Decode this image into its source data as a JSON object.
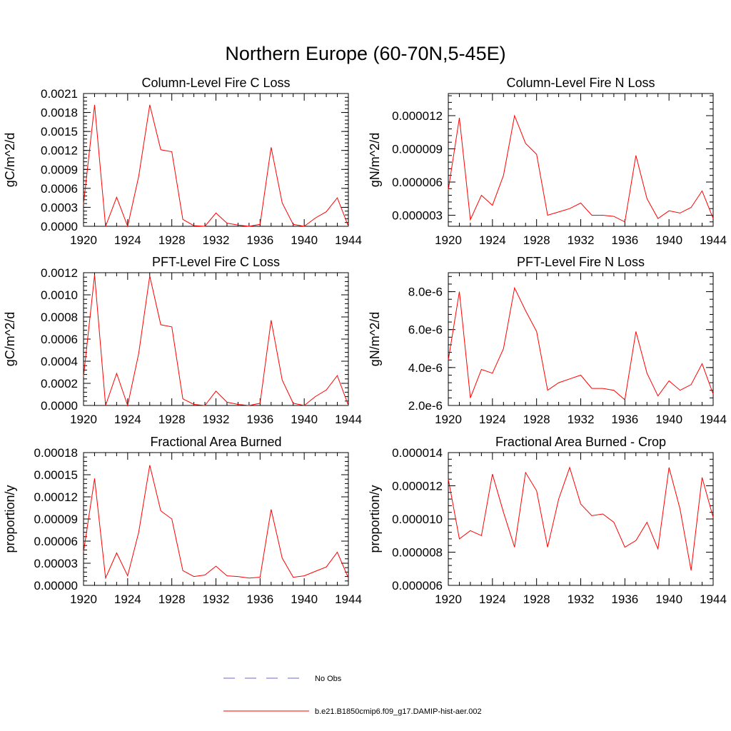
{
  "title": "Northern Europe (60-70N,5-45E)",
  "colors": {
    "model_line": "#ff0000",
    "obs_line": "#6a6ad0",
    "axis": "#000000"
  },
  "legend": {
    "placement": "bottom-center",
    "entries": [
      {
        "label": "No Obs",
        "style": "dashed",
        "color": "#6a6ad0"
      },
      {
        "label": "b.e21.B1850cmip6.f09_g17.DAMIP-hist-aer.002",
        "style": "solid",
        "color": "#ff0000"
      }
    ]
  },
  "chart_data": [
    {
      "type": "line",
      "title": "Column-Level Fire C Loss",
      "ylabel": "gC/m^2/d",
      "xlim": [
        1920,
        1944
      ],
      "xticks": [
        "1920",
        "1924",
        "1928",
        "1932",
        "1936",
        "1940",
        "1944"
      ],
      "ylim": [
        0,
        0.0021
      ],
      "yticks": [
        "0.0000",
        "0.0003",
        "0.0006",
        "0.0009",
        "0.0012",
        "0.0015",
        "0.0018",
        "0.0021"
      ],
      "series": [
        {
          "x": [
            1920,
            1921,
            1922,
            1923,
            1924,
            1925,
            1926,
            1927,
            1928,
            1929,
            1930,
            1931,
            1932,
            1933,
            1934,
            1935,
            1936,
            1937,
            1938,
            1939,
            1940,
            1941,
            1942,
            1943,
            1944
          ],
          "values": [
            0.00035,
            0.00192,
            0.0,
            0.00046,
            0.0,
            0.00079,
            0.00192,
            0.00121,
            0.00118,
            0.00011,
            1e-05,
            0.0,
            0.00021,
            5e-05,
            2e-05,
            0.0,
            3e-05,
            0.00125,
            0.00037,
            3e-05,
            0.0,
            0.00013,
            0.00023,
            0.00045,
            0.0
          ]
        }
      ]
    },
    {
      "type": "line",
      "title": "Column-Level Fire N Loss",
      "ylabel": "gN/m^2/d",
      "xlim": [
        1920,
        1944
      ],
      "xticks": [
        "1920",
        "1924",
        "1928",
        "1932",
        "1936",
        "1940",
        "1944"
      ],
      "ylim": [
        2e-06,
        1.4e-05
      ],
      "yticks": [
        "0.000003",
        "0.000006",
        "0.000009",
        "0.000012"
      ],
      "series": [
        {
          "x": [
            1920,
            1921,
            1922,
            1923,
            1924,
            1925,
            1926,
            1927,
            1928,
            1929,
            1930,
            1931,
            1932,
            1933,
            1934,
            1935,
            1936,
            1937,
            1938,
            1939,
            1940,
            1941,
            1942,
            1943,
            1944
          ],
          "values": [
            5.3e-06,
            1.18e-05,
            2.6e-06,
            4.8e-06,
            3.9e-06,
            6.6e-06,
            1.2e-05,
            9.5e-06,
            8.5e-06,
            3e-06,
            3.3e-06,
            3.6e-06,
            4.1e-06,
            3e-06,
            3e-06,
            2.9e-06,
            2.4e-06,
            8.4e-06,
            4.5e-06,
            2.7e-06,
            3.4e-06,
            3.2e-06,
            3.7e-06,
            5.2e-06,
            2.7e-06
          ]
        }
      ]
    },
    {
      "type": "line",
      "title": "PFT-Level Fire C Loss",
      "ylabel": "gC/m^2/d",
      "xlim": [
        1920,
        1944
      ],
      "xticks": [
        "1920",
        "1924",
        "1928",
        "1932",
        "1936",
        "1940",
        "1944"
      ],
      "ylim": [
        0,
        0.0012
      ],
      "yticks": [
        "0.0000",
        "0.0002",
        "0.0004",
        "0.0006",
        "0.0008",
        "0.0010",
        "0.0012"
      ],
      "series": [
        {
          "x": [
            1920,
            1921,
            1922,
            1923,
            1924,
            1925,
            1926,
            1927,
            1928,
            1929,
            1930,
            1931,
            1932,
            1933,
            1934,
            1935,
            1936,
            1937,
            1938,
            1939,
            1940,
            1941,
            1942,
            1943,
            1944
          ],
          "values": [
            0.00026,
            0.00118,
            0.0,
            0.00029,
            0.0,
            0.00047,
            0.00117,
            0.00073,
            0.00071,
            6e-05,
            1e-05,
            0.0,
            0.00013,
            3e-05,
            1e-05,
            0.0,
            2e-05,
            0.00077,
            0.00023,
            2e-05,
            0.0,
            8e-05,
            0.00014,
            0.00027,
            0.0
          ]
        }
      ]
    },
    {
      "type": "line",
      "title": "PFT-Level Fire N Loss",
      "ylabel": "gN/m^2/d",
      "xlim": [
        1920,
        1944
      ],
      "xticks": [
        "1920",
        "1924",
        "1928",
        "1932",
        "1936",
        "1940",
        "1944"
      ],
      "ylim": [
        2e-06,
        9e-06
      ],
      "yticks": [
        "2.0e-6",
        "4.0e-6",
        "6.0e-6",
        "8.0e-6"
      ],
      "series": [
        {
          "x": [
            1920,
            1921,
            1922,
            1923,
            1924,
            1925,
            1926,
            1927,
            1928,
            1929,
            1930,
            1931,
            1932,
            1933,
            1934,
            1935,
            1936,
            1937,
            1938,
            1939,
            1940,
            1941,
            1942,
            1943,
            1944
          ],
          "values": [
            4.4e-06,
            8e-06,
            2.4e-06,
            3.9e-06,
            3.7e-06,
            5e-06,
            8.2e-06,
            7e-06,
            5.9e-06,
            2.8e-06,
            3.2e-06,
            3.4e-06,
            3.6e-06,
            2.9e-06,
            2.9e-06,
            2.8e-06,
            2.3e-06,
            5.9e-06,
            3.7e-06,
            2.5e-06,
            3.3e-06,
            2.8e-06,
            3.1e-06,
            4.2e-06,
            2.6e-06
          ]
        }
      ]
    },
    {
      "type": "line",
      "title": "Fractional Area Burned",
      "ylabel": "proportion/y",
      "xlim": [
        1920,
        1944
      ],
      "xticks": [
        "1920",
        "1924",
        "1928",
        "1932",
        "1936",
        "1940",
        "1944"
      ],
      "ylim": [
        0,
        0.00018
      ],
      "yticks": [
        "0.00000",
        "0.00003",
        "0.00006",
        "0.00009",
        "0.00012",
        "0.00015",
        "0.00018"
      ],
      "series": [
        {
          "x": [
            1920,
            1921,
            1922,
            1923,
            1924,
            1925,
            1926,
            1927,
            1928,
            1929,
            1930,
            1931,
            1932,
            1933,
            1934,
            1935,
            1936,
            1937,
            1938,
            1939,
            1940,
            1941,
            1942,
            1943,
            1944
          ],
          "values": [
            4.5e-05,
            0.000145,
            1e-05,
            4.4e-05,
            1.3e-05,
            7.2e-05,
            0.000163,
            0.000101,
            9e-05,
            2e-05,
            1.2e-05,
            1.4e-05,
            2.6e-05,
            1.3e-05,
            1.2e-05,
            1e-05,
            1.1e-05,
            0.000103,
            3.7e-05,
            1.1e-05,
            1.3e-05,
            1.9e-05,
            2.5e-05,
            4.5e-05,
            1e-05
          ]
        }
      ]
    },
    {
      "type": "line",
      "title": "Fractional Area Burned - Crop",
      "ylabel": "proportion/y",
      "xlim": [
        1920,
        1944
      ],
      "xticks": [
        "1920",
        "1924",
        "1928",
        "1932",
        "1936",
        "1940",
        "1944"
      ],
      "ylim": [
        6e-06,
        1.4e-05
      ],
      "yticks": [
        "0.000006",
        "0.000008",
        "0.000010",
        "0.000012",
        "0.000014"
      ],
      "series": [
        {
          "x": [
            1920,
            1921,
            1922,
            1923,
            1924,
            1925,
            1926,
            1927,
            1928,
            1929,
            1930,
            1931,
            1932,
            1933,
            1934,
            1935,
            1936,
            1937,
            1938,
            1939,
            1940,
            1941,
            1942,
            1943,
            1944
          ],
          "values": [
            1.24e-05,
            8.8e-06,
            9.3e-06,
            9e-06,
            1.27e-05,
            1.04e-05,
            8.3e-06,
            1.28e-05,
            1.17e-05,
            8.3e-06,
            1.12e-05,
            1.31e-05,
            1.09e-05,
            1.02e-05,
            1.03e-05,
            9.8e-06,
            8.3e-06,
            8.7e-06,
            9.8e-06,
            8.2e-06,
            1.31e-05,
            1.06e-05,
            6.9e-06,
            1.25e-05,
            1.01e-05
          ]
        }
      ]
    }
  ]
}
